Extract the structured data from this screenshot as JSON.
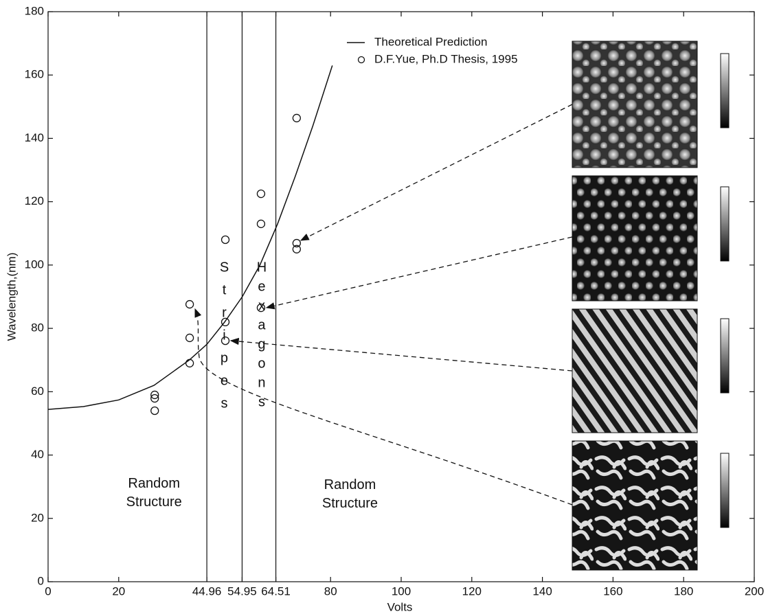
{
  "chart_data": {
    "type": "scatter",
    "x_label": "Volts",
    "y_label": "Wavelength,(nm)",
    "xlim": [
      0,
      200
    ],
    "ylim": [
      0,
      180
    ],
    "xticks": [
      0,
      20,
      44.96,
      54.95,
      64.51,
      80,
      100,
      120,
      140,
      160,
      180,
      200
    ],
    "yticks": [
      0,
      20,
      40,
      60,
      80,
      100,
      120,
      140,
      160,
      180
    ],
    "vlines": [
      44.96,
      54.95,
      64.51
    ],
    "series": [
      {
        "name": "Theoretical Prediction",
        "type": "line",
        "color": "#111111",
        "x": [
          0,
          10,
          20,
          30,
          40,
          45,
          50,
          55,
          60,
          65,
          70,
          75,
          80.5
        ],
        "values": [
          54.4,
          55.3,
          57.4,
          62,
          70,
          75,
          82,
          90,
          100,
          113,
          128,
          144,
          163
        ]
      },
      {
        "name": "D.F.Yue, Ph.D Thesis, 1995",
        "type": "scatter",
        "color": "#111111",
        "x": [
          30.2,
          30.2,
          30.2,
          40.1,
          40.1,
          40.1,
          50.2,
          50.2,
          50.2,
          60.3,
          60.3,
          60.3,
          70.4,
          70.4,
          70.4
        ],
        "values": [
          59,
          57.9,
          54,
          87.6,
          77,
          69,
          108,
          82,
          76.1,
          122.5,
          113,
          86.5,
          146.4,
          106.9,
          105
        ]
      }
    ],
    "annotations": [
      {
        "text": "Random Structure",
        "x": 30,
        "y": 28
      },
      {
        "text": "Stripes",
        "x": 49.9,
        "y": 50
      },
      {
        "text": "Hexagons",
        "x": 60.5,
        "y": 50
      },
      {
        "text": "Random Structure",
        "x": 85.5,
        "y": 27.5
      }
    ]
  }
}
